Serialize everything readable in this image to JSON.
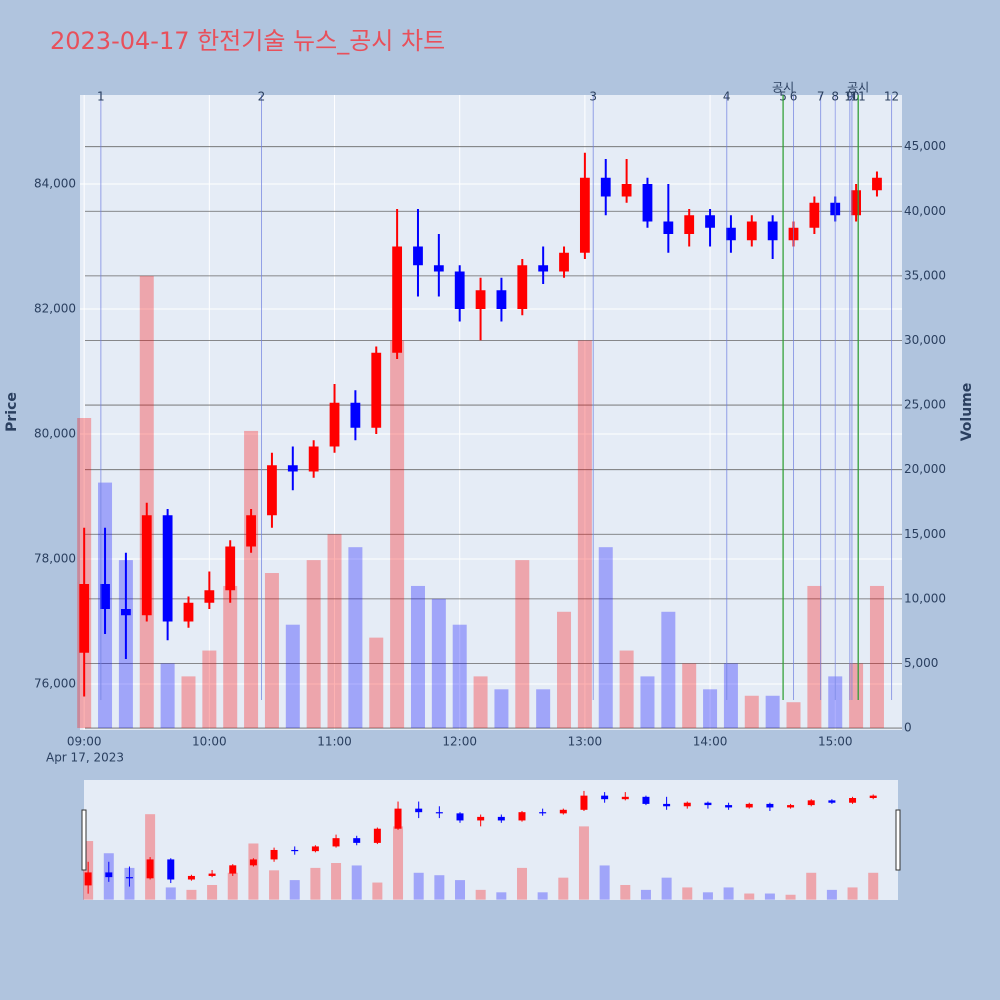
{
  "chart_data": {
    "type": "candlestick",
    "title": "2023-04-17 한전기술 뉴스_공시 차트",
    "y_label": "Price",
    "y2_label": "Volume",
    "date_label": "Apr 17, 2023",
    "increasing_color": "#ff0000",
    "decreasing_color": "#0000ff",
    "x": [
      "09:00",
      "09:10",
      "09:20",
      "09:30",
      "09:40",
      "09:50",
      "10:00",
      "10:10",
      "10:20",
      "10:30",
      "10:40",
      "10:50",
      "11:00",
      "11:10",
      "11:20",
      "11:30",
      "11:40",
      "11:50",
      "12:00",
      "12:10",
      "12:20",
      "12:30",
      "12:40",
      "12:50",
      "13:00",
      "13:10",
      "13:20",
      "13:30",
      "13:40",
      "13:50",
      "14:00",
      "14:10",
      "14:20",
      "14:30",
      "14:40",
      "14:50",
      "15:00",
      "15:10",
      "15:20"
    ],
    "open": [
      76500,
      77600,
      77200,
      77100,
      78700,
      77000,
      77300,
      77500,
      78200,
      78700,
      79500,
      79400,
      79800,
      80500,
      80100,
      81300,
      83000,
      82700,
      82600,
      82000,
      82300,
      82000,
      82700,
      82600,
      82900,
      84100,
      83800,
      84000,
      83400,
      83200,
      83500,
      83300,
      83100,
      83400,
      83100,
      83300,
      83700,
      83500,
      83900
    ],
    "high": [
      78500,
      78500,
      78100,
      78900,
      78800,
      77400,
      77800,
      78300,
      78800,
      79700,
      79800,
      79900,
      80800,
      80700,
      81400,
      83600,
      83600,
      83200,
      82700,
      82500,
      82500,
      82800,
      83000,
      83000,
      84500,
      84400,
      84400,
      84100,
      84000,
      83600,
      83600,
      83500,
      83500,
      83500,
      83400,
      83800,
      83800,
      84000,
      84200
    ],
    "low": [
      75800,
      76800,
      76400,
      77000,
      76700,
      76900,
      77200,
      77300,
      78100,
      78500,
      79100,
      79300,
      79700,
      79900,
      80000,
      81200,
      82200,
      82200,
      81800,
      81500,
      81800,
      81900,
      82400,
      82500,
      82800,
      83500,
      83700,
      83300,
      82900,
      83000,
      83000,
      82900,
      83000,
      82800,
      83000,
      83200,
      83400,
      83400,
      83800
    ],
    "close": [
      77600,
      77200,
      77100,
      78700,
      77000,
      77300,
      77500,
      78200,
      78700,
      79500,
      79400,
      79800,
      80500,
      80100,
      81300,
      83000,
      82700,
      82600,
      82000,
      82300,
      82000,
      82700,
      82600,
      82900,
      84100,
      83800,
      84000,
      83400,
      83200,
      83500,
      83300,
      83100,
      83400,
      83100,
      83300,
      83700,
      83500,
      83900,
      84100
    ],
    "volume": [
      24000,
      19000,
      13000,
      35000,
      5000,
      4000,
      6000,
      11000,
      23000,
      12000,
      8000,
      13000,
      15000,
      14000,
      7000,
      30000,
      11000,
      10000,
      8000,
      4000,
      3000,
      13000,
      3000,
      9000,
      30000,
      14000,
      6000,
      4000,
      9000,
      5000,
      3000,
      5000,
      2500,
      2500,
      2000,
      11000,
      4000,
      5000,
      11000
    ],
    "xlim": [
      "08:58",
      "15:32"
    ],
    "xticks": [
      "09:00",
      "10:00",
      "11:00",
      "12:00",
      "13:00",
      "14:00",
      "15:00"
    ],
    "ylim": [
      75264,
      85424
    ],
    "yticks": [
      {
        "value": 76000,
        "label": "76,000"
      },
      {
        "value": 78000,
        "label": "78,000"
      },
      {
        "value": 80000,
        "label": "80,000"
      },
      {
        "value": 82000,
        "label": "82,000"
      },
      {
        "value": 84000,
        "label": "84,000"
      }
    ],
    "y2lim": [
      -150,
      49000
    ],
    "y2ticks": [
      0,
      {
        "value": 5000,
        "label": "5,000"
      },
      {
        "value": 10000,
        "label": "10,000"
      },
      {
        "value": 15000,
        "label": "15,000"
      },
      {
        "value": 20000,
        "label": "20,000"
      },
      {
        "value": 25000,
        "label": "25,000"
      },
      {
        "value": 30000,
        "label": "30,000"
      },
      {
        "value": 35000,
        "label": "35,000"
      },
      {
        "value": 40000,
        "label": "40,000"
      },
      {
        "value": 45000,
        "label": "45,000"
      }
    ],
    "news": [
      {
        "label": "1",
        "x": "09:08"
      },
      {
        "label": "2",
        "x": "10:25"
      },
      {
        "label": "3",
        "x": "13:04"
      },
      {
        "label": "4",
        "x": "14:08"
      },
      {
        "label": "5",
        "x": "14:35"
      },
      {
        "label": "6",
        "x": "14:40"
      },
      {
        "label": "7",
        "x": "14:53"
      },
      {
        "label": "8",
        "x": "15:00"
      },
      {
        "label": "9",
        "x": "15:07"
      },
      {
        "label": "10",
        "x": "15:08"
      },
      {
        "label": "11",
        "x": "15:11"
      },
      {
        "label": "12",
        "x": "15:27"
      }
    ],
    "disclosures": [
      {
        "label": "공시",
        "x": "14:35"
      },
      {
        "label": "공시",
        "x": "15:11"
      }
    ]
  }
}
